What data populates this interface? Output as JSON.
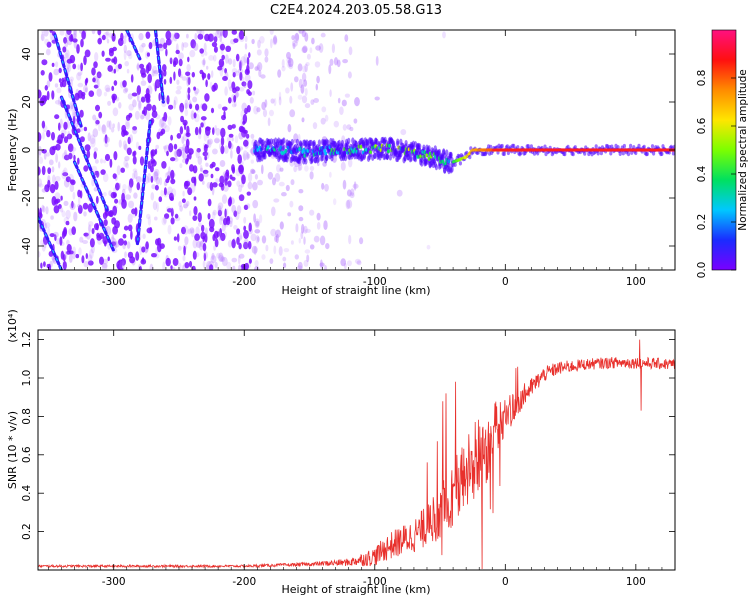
{
  "title": "C2E4.2024.203.05.58.G13",
  "chart_data": [
    {
      "type": "heatmap",
      "xlabel": "Height of straight line (km)",
      "ylabel": "Frequency (Hz)",
      "xlim": [
        -358,
        130
      ],
      "ylim": [
        -50,
        50
      ],
      "xticks": [
        -300,
        -200,
        -100,
        0,
        100
      ],
      "yticks": [
        -40,
        -20,
        0,
        20,
        40
      ],
      "colorbar": {
        "label": "Normalized spectral amplitude",
        "range": [
          0,
          1
        ],
        "ticks": [
          "0.0",
          "0.2",
          "0.4",
          "0.6",
          "0.8"
        ],
        "tick_values": [
          0.0,
          0.2,
          0.4,
          0.6,
          0.8
        ],
        "colormap": [
          "#7a00ff",
          "#1a2cff",
          "#00c8ff",
          "#00e060",
          "#7cff00",
          "#ffe600",
          "#ff8c00",
          "#ff1010",
          "#ff1080"
        ]
      },
      "signal_track": {
        "x": [
          -190,
          -170,
          -150,
          -130,
          -110,
          -90,
          -75,
          -60,
          -50,
          -45,
          -40,
          -35,
          -30,
          -25,
          -20,
          -10,
          0,
          40,
          130
        ],
        "y": [
          0,
          0,
          -1,
          0,
          0,
          1,
          -1,
          -2,
          -4,
          -5,
          -5,
          -4,
          -3,
          0,
          0,
          0,
          0,
          0,
          0
        ],
        "amplitude": [
          0.3,
          0.35,
          0.3,
          0.4,
          0.45,
          0.55,
          0.6,
          0.5,
          0.4,
          0.35,
          0.4,
          0.5,
          0.6,
          0.7,
          0.75,
          0.8,
          0.85,
          0.9,
          0.9
        ]
      },
      "streaks": [
        {
          "x": [
            -345,
            -325
          ],
          "y": [
            48,
            10
          ]
        },
        {
          "x": [
            -340,
            -305
          ],
          "y": [
            22,
            -25
          ]
        },
        {
          "x": [
            -358,
            -340
          ],
          "y": [
            -28,
            -50
          ]
        },
        {
          "x": [
            -330,
            -300
          ],
          "y": [
            -5,
            -42
          ]
        },
        {
          "x": [
            -290,
            -280
          ],
          "y": [
            50,
            38
          ]
        },
        {
          "x": [
            -268,
            -262
          ],
          "y": [
            50,
            20
          ]
        },
        {
          "x": [
            -272,
            -282
          ],
          "y": [
            12,
            -40
          ]
        }
      ]
    },
    {
      "type": "line",
      "xlabel": "Height of straight line (km)",
      "ylabel": "SNR (10 * v/v)",
      "yscale_label": "(x10⁴)",
      "xlim": [
        -358,
        130
      ],
      "ylim": [
        0,
        1.25
      ],
      "xticks": [
        -300,
        -200,
        -100,
        0,
        100
      ],
      "yticks": [
        "0.2",
        "0.4",
        "0.6",
        "0.8",
        "1.0",
        "1.2"
      ],
      "ytick_values": [
        0.2,
        0.4,
        0.6,
        0.8,
        1.0,
        1.2
      ],
      "color": "#e8302c",
      "series": [
        {
          "x": [
            -358,
            -300,
            -250,
            -200,
            -150,
            -120,
            -100,
            -90,
            -80,
            -70,
            -60,
            -50,
            -40,
            -30,
            -20,
            -15,
            -10,
            0,
            10,
            20,
            30,
            40,
            60,
            80,
            100,
            130
          ],
          "values": [
            0.02,
            0.02,
            0.02,
            0.02,
            0.03,
            0.04,
            0.07,
            0.12,
            0.15,
            0.18,
            0.23,
            0.3,
            0.4,
            0.5,
            0.6,
            0.62,
            0.72,
            0.8,
            0.88,
            0.95,
            1.02,
            1.05,
            1.07,
            1.08,
            1.08,
            1.07
          ],
          "noise": [
            0.006,
            0.006,
            0.006,
            0.006,
            0.01,
            0.02,
            0.05,
            0.07,
            0.08,
            0.09,
            0.11,
            0.14,
            0.18,
            0.2,
            0.22,
            0.2,
            0.15,
            0.1,
            0.07,
            0.05,
            0.04,
            0.035,
            0.03,
            0.03,
            0.03,
            0.03
          ]
        }
      ]
    }
  ]
}
